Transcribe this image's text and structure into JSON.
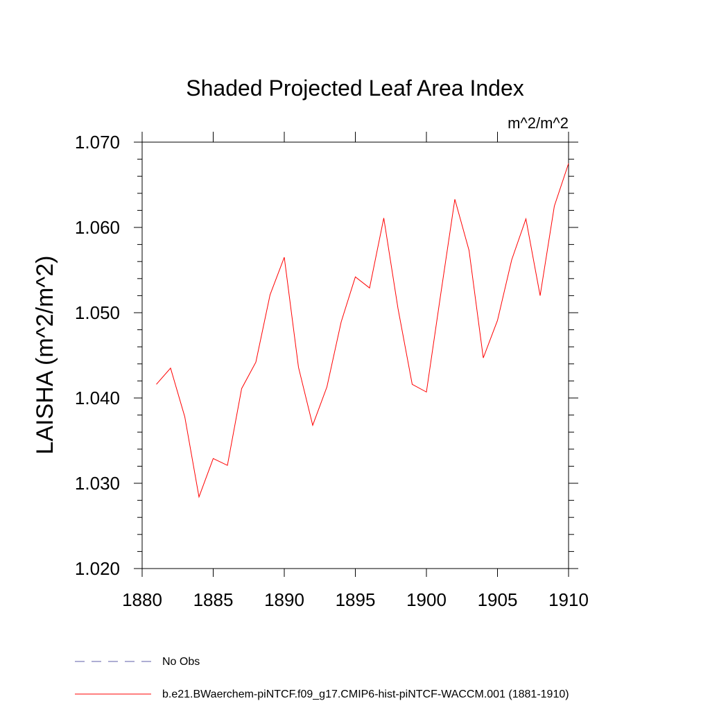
{
  "chart_data": {
    "type": "line",
    "title": "Shaded Projected Leaf Area Index",
    "units_label": "m^2/m^2",
    "ylabel": "LAISHA  (m^2/m^2)",
    "xlabel": "",
    "xlim": [
      1880,
      1910
    ],
    "ylim": [
      1.02,
      1.07
    ],
    "x_ticks": [
      1880,
      1885,
      1890,
      1895,
      1900,
      1905,
      1910
    ],
    "x_tick_labels": [
      "1880",
      "1885",
      "1890",
      "1895",
      "1900",
      "1905",
      "1910"
    ],
    "y_ticks": [
      1.02,
      1.03,
      1.04,
      1.05,
      1.06,
      1.07
    ],
    "y_tick_labels": [
      "1.020",
      "1.030",
      "1.040",
      "1.050",
      "1.060",
      "1.070"
    ],
    "grid": false,
    "legend_placement": "bottom-left, below plot",
    "series": [
      {
        "name": "b.e21.BWaerchem-piNTCF.f09_g17.CMIP6-hist-piNTCF-WACCM.001 (1881-1910)",
        "color": "#ff0000",
        "style": "solid",
        "x": [
          1881,
          1882,
          1883,
          1884,
          1885,
          1886,
          1887,
          1888,
          1889,
          1890,
          1891,
          1892,
          1893,
          1894,
          1895,
          1896,
          1897,
          1898,
          1899,
          1900,
          1901,
          1902,
          1903,
          1904,
          1905,
          1906,
          1907,
          1908,
          1909,
          1910
        ],
        "values": [
          1.0416,
          1.0435,
          1.0378,
          1.0284,
          1.0329,
          1.0321,
          1.0411,
          1.0442,
          1.0521,
          1.0565,
          1.0436,
          1.0368,
          1.0413,
          1.0489,
          1.0542,
          1.0529,
          1.0611,
          1.0505,
          1.0416,
          1.0407,
          1.0521,
          1.0633,
          1.0573,
          1.0447,
          1.0491,
          1.0562,
          1.061,
          1.052,
          1.0625,
          1.0675
        ]
      },
      {
        "name": "No Obs",
        "color": "#5c5ca8",
        "style": "dashed",
        "x": [],
        "values": []
      }
    ]
  }
}
